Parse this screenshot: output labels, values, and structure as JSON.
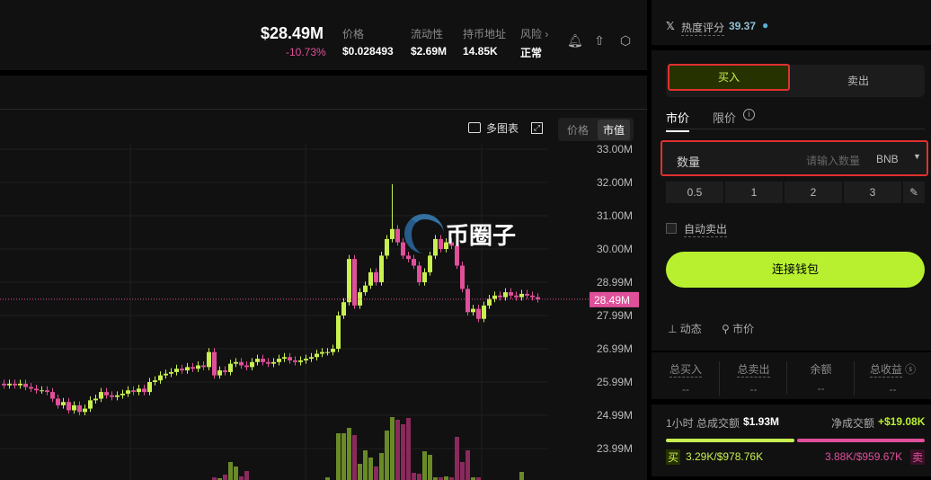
{
  "header": {
    "market_cap": "$28.49M",
    "change": "-10.73%",
    "stats": [
      {
        "label": "价格",
        "value": "$0.028493"
      },
      {
        "label": "流动性",
        "value": "$2.69M"
      },
      {
        "label": "持币地址",
        "value": "14.85K"
      },
      {
        "label": "风险 ›",
        "value": "正常"
      }
    ],
    "icons": [
      "bell-plus-icon",
      "share-icon",
      "settings-hex-icon"
    ]
  },
  "chart_toolbar": {
    "multi_chart": "多图表",
    "toggle": [
      "价格",
      "市值"
    ],
    "active": "市值"
  },
  "chart_data": {
    "type": "candlestick",
    "y_ticks": [
      "33.00M",
      "32.00M",
      "31.00M",
      "30.00M",
      "28.99M",
      "27.99M",
      "26.99M",
      "25.99M",
      "24.99M",
      "23.99M"
    ],
    "current_label": "28.49M",
    "current": 28.49,
    "ylim": [
      23.5,
      33.0
    ],
    "closes": [
      25.9,
      25.95,
      25.9,
      25.95,
      25.85,
      25.8,
      25.75,
      25.75,
      25.7,
      25.5,
      25.3,
      25.4,
      25.15,
      25.3,
      25.1,
      25.2,
      25.45,
      25.5,
      25.7,
      25.6,
      25.55,
      25.6,
      25.65,
      25.75,
      25.7,
      25.8,
      25.7,
      26.0,
      26.05,
      26.2,
      26.25,
      26.3,
      26.4,
      26.35,
      26.45,
      26.4,
      26.5,
      26.45,
      26.9,
      26.2,
      26.35,
      26.3,
      26.55,
      26.6,
      26.5,
      26.45,
      26.6,
      26.7,
      26.6,
      26.55,
      26.6,
      26.7,
      26.75,
      26.65,
      26.6,
      26.65,
      26.7,
      26.75,
      26.85,
      26.9,
      26.9,
      27.0,
      28.0,
      28.4,
      29.7,
      28.3,
      28.7,
      28.9,
      29.3,
      29.0,
      29.8,
      30.3,
      30.6,
      30.2,
      29.8,
      29.7,
      29.5,
      29.0,
      29.3,
      29.8,
      30.3,
      30.0,
      30.2,
      30.1,
      29.5,
      28.8,
      28.1,
      28.2,
      27.9,
      28.3,
      28.5,
      28.6,
      28.55,
      28.7,
      28.6,
      28.55,
      28.65,
      28.6,
      28.55,
      28.49
    ],
    "peak": {
      "index": 72,
      "high": 31.95
    },
    "volumes": [
      0,
      0,
      0,
      0,
      0,
      0,
      0,
      0,
      0,
      0,
      0,
      0,
      0,
      0,
      0,
      0,
      0,
      0,
      0,
      0,
      0,
      0,
      0,
      0,
      0,
      0,
      0,
      0,
      0,
      0,
      0,
      0,
      0,
      0,
      0,
      0,
      0,
      0,
      0,
      3,
      2,
      6,
      20,
      15,
      4,
      10,
      0,
      0,
      0,
      0,
      0,
      0,
      0,
      0,
      0,
      0,
      0,
      0,
      0,
      0,
      3,
      0,
      52,
      52,
      58,
      50,
      18,
      33,
      25,
      15,
      30,
      55,
      70,
      67,
      62,
      69,
      8,
      7,
      32,
      28,
      3,
      3,
      4,
      3,
      48,
      20,
      33,
      3,
      3,
      0,
      0,
      0,
      0,
      0,
      0,
      0,
      9,
      0,
      0,
      0
    ]
  },
  "watermark": "币圈子",
  "right": {
    "heat_label": "热度评分",
    "heat_value": "39.37",
    "buy": "买入",
    "sell": "卖出",
    "tabs": [
      "市价",
      "限价"
    ],
    "amount_label": "数量",
    "amount_placeholder": "请输入数量",
    "currency": "BNB",
    "quick": [
      "0.5",
      "1",
      "2",
      "3"
    ],
    "auto_sell": "自动卖出",
    "connect": "连接钱包",
    "activity": "动态",
    "market": "市价",
    "summary": [
      {
        "label": "总买入",
        "value": "--"
      },
      {
        "label": "总卖出",
        "value": "--"
      },
      {
        "label": "余额",
        "value": "--"
      },
      {
        "label": "总收益",
        "value": "--"
      }
    ],
    "hour": {
      "label": "1小时 总成交额",
      "total": "$1.93M",
      "net_label": "净成交额",
      "net": "+$19.08K",
      "buy_tag": "买",
      "buy": "3.29K/$978.76K",
      "sell": "3.88K/$959.67K",
      "sell_tag": "卖",
      "buy_fraction": 0.505
    }
  },
  "colors": {
    "up": "#c8f050",
    "down": "#e0509a",
    "accent": "#b8f030"
  }
}
